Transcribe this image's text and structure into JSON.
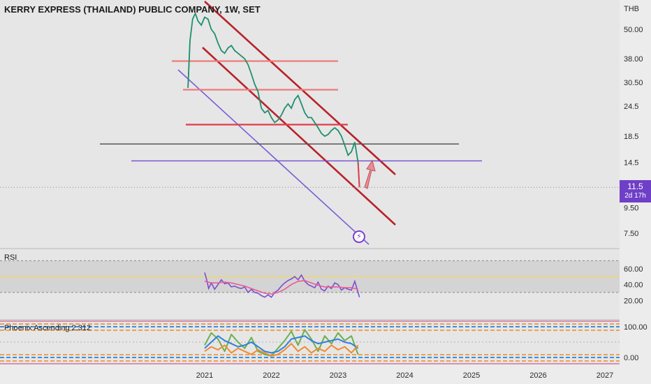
{
  "header": {
    "title": "KERRY EXPRESS (THAILAND) PUBLIC COMPANY, 1W, SET",
    "currency": "THB"
  },
  "price_badge": {
    "price": "11.5",
    "countdown": "2d 17h",
    "color": "#6f3fc7"
  },
  "icons": {
    "alert": "lightning-icon",
    "arrow": "up-arrow-annotation"
  },
  "panes": {
    "rsi_label": "RSI",
    "phoenix_label": "Phoenix Ascending 2.312"
  },
  "chart_data": [
    {
      "type": "line",
      "title": "KERRY EXPRESS (THAILAND) PUBLIC COMPANY, 1W, SET",
      "y_scale": "log",
      "y_ticks": [
        "50.00",
        "38.00",
        "30.50",
        "24.5",
        "18.5",
        "14.5",
        "9.50",
        "7.50"
      ],
      "y_tick_values": [
        50,
        38,
        30.5,
        24.5,
        18.5,
        14.5,
        9.5,
        7.5
      ],
      "x_ticks": [
        "2021",
        "2022",
        "2023",
        "2024",
        "2025",
        "2026",
        "2027"
      ],
      "x_tick_years": [
        2021,
        2022,
        2023,
        2024,
        2025,
        2026,
        2027
      ],
      "last_price": 11.5,
      "series": [
        {
          "x": [
            2020.75,
            2020.78,
            2020.82,
            2020.86,
            2020.9,
            2020.95,
            2021.0,
            2021.05,
            2021.1,
            2021.15,
            2021.2,
            2021.25,
            2021.3,
            2021.35,
            2021.4,
            2021.45,
            2021.5,
            2021.55,
            2021.6,
            2021.65,
            2021.7,
            2021.75,
            2021.8,
            2021.85,
            2021.9,
            2021.95,
            2022.0,
            2022.05,
            2022.1,
            2022.15,
            2022.2,
            2022.25,
            2022.3,
            2022.35,
            2022.4,
            2022.45,
            2022.5,
            2022.55,
            2022.6,
            2022.65,
            2022.7,
            2022.75,
            2022.8,
            2022.85,
            2022.9,
            2022.95,
            2023.0,
            2023.05,
            2023.1,
            2023.15,
            2023.2,
            2023.25,
            2023.3,
            2023.32
          ],
          "values": [
            29,
            45,
            55,
            58,
            54,
            52,
            56,
            55,
            50,
            48,
            44,
            41,
            40,
            42,
            43,
            41,
            40,
            39,
            38,
            36,
            33,
            30,
            28,
            24,
            23,
            23.5,
            22,
            21,
            21.5,
            22.5,
            24,
            25,
            24,
            26,
            27,
            25,
            23,
            22,
            22,
            21,
            20,
            19,
            18.5,
            18.8,
            19.5,
            20,
            19.5,
            18.5,
            17,
            15.5,
            16,
            17.5,
            14.5,
            11.5
          ]
        }
      ],
      "annotations": {
        "horizontal_levels": [
          37.2,
          28.5,
          20.6,
          17.2,
          14.7
        ]
      }
    },
    {
      "type": "line",
      "title": "RSI",
      "y_ticks": [
        "60.00",
        "40.00",
        "20.00"
      ],
      "y_tick_values": [
        60,
        40,
        20
      ],
      "band": [
        30,
        70
      ],
      "reference_line": 50,
      "series": [
        {
          "x": [
            2021.0,
            2021.03,
            2021.06,
            2021.1,
            2021.15,
            2021.2,
            2021.25,
            2021.3,
            2021.35,
            2021.4,
            2021.45,
            2021.5,
            2021.55,
            2021.6,
            2021.65,
            2021.7,
            2021.75,
            2021.8,
            2021.85,
            2021.9,
            2021.95,
            2022.0,
            2022.05,
            2022.1,
            2022.15,
            2022.2,
            2022.25,
            2022.3,
            2022.35,
            2022.4,
            2022.45,
            2022.5,
            2022.55,
            2022.6,
            2022.65,
            2022.7,
            2022.75,
            2022.8,
            2022.85,
            2022.9,
            2022.95,
            2023.0,
            2023.05,
            2023.1,
            2023.15,
            2023.2,
            2023.25,
            2023.3,
            2023.32
          ],
          "values": [
            55,
            46,
            35,
            42,
            34,
            40,
            46,
            41,
            42,
            37,
            38,
            36,
            35,
            37,
            30,
            34,
            30,
            29,
            26,
            24,
            27,
            24,
            30,
            33,
            38,
            42,
            45,
            47,
            50,
            46,
            52,
            44,
            40,
            38,
            36,
            43,
            34,
            32,
            38,
            35,
            42,
            40,
            33,
            36,
            34,
            33,
            44,
            30,
            24
          ]
        },
        {
          "x": [
            2021.0,
            2021.1,
            2021.2,
            2021.3,
            2021.4,
            2021.5,
            2021.6,
            2021.7,
            2021.8,
            2021.9,
            2022.0,
            2022.1,
            2022.2,
            2022.3,
            2022.4,
            2022.5,
            2022.6,
            2022.7,
            2022.8,
            2022.9,
            2023.0,
            2023.1,
            2023.2,
            2023.3
          ],
          "values": [
            44,
            42,
            42,
            43,
            42,
            40,
            38,
            35,
            32,
            29,
            28,
            30,
            34,
            40,
            44,
            45,
            42,
            39,
            37,
            37,
            37,
            36,
            36,
            34
          ]
        }
      ]
    },
    {
      "type": "line",
      "title": "Phoenix Ascending 2.312",
      "y_ticks": [
        "100.00",
        "0.00"
      ],
      "y_tick_values": [
        100,
        0
      ],
      "series": [
        {
          "x": [
            2021.0,
            2021.1,
            2021.2,
            2021.3,
            2021.4,
            2021.5,
            2021.6,
            2021.7,
            2021.8,
            2021.9,
            2022.0,
            2022.1,
            2022.2,
            2022.3,
            2022.4,
            2022.5,
            2022.6,
            2022.7,
            2022.8,
            2022.9,
            2023.0,
            2023.1,
            2023.2,
            2023.3
          ],
          "values": [
            40,
            80,
            60,
            20,
            75,
            50,
            30,
            65,
            20,
            10,
            5,
            30,
            55,
            85,
            40,
            90,
            60,
            20,
            70,
            45,
            80,
            55,
            70,
            10
          ]
        },
        {
          "x": [
            2021.0,
            2021.1,
            2021.2,
            2021.3,
            2021.4,
            2021.5,
            2021.6,
            2021.7,
            2021.8,
            2021.9,
            2022.0,
            2022.1,
            2022.2,
            2022.3,
            2022.4,
            2022.5,
            2022.6,
            2022.7,
            2022.8,
            2022.9,
            2023.0,
            2023.1,
            2023.2,
            2023.3
          ],
          "values": [
            30,
            50,
            70,
            55,
            45,
            35,
            40,
            50,
            35,
            20,
            15,
            20,
            35,
            60,
            65,
            70,
            55,
            45,
            50,
            55,
            60,
            50,
            45,
            30
          ]
        },
        {
          "x": [
            2021.0,
            2021.1,
            2021.2,
            2021.3,
            2021.4,
            2021.5,
            2021.6,
            2021.7,
            2021.8,
            2021.9,
            2022.0,
            2022.1,
            2022.2,
            2022.3,
            2022.4,
            2022.5,
            2022.6,
            2022.7,
            2022.8,
            2022.9,
            2023.0,
            2023.1,
            2023.2,
            2023.3
          ],
          "values": [
            20,
            35,
            25,
            40,
            15,
            30,
            20,
            10,
            25,
            15,
            5,
            10,
            25,
            45,
            20,
            35,
            15,
            30,
            20,
            40,
            25,
            35,
            15,
            40
          ]
        }
      ]
    }
  ]
}
